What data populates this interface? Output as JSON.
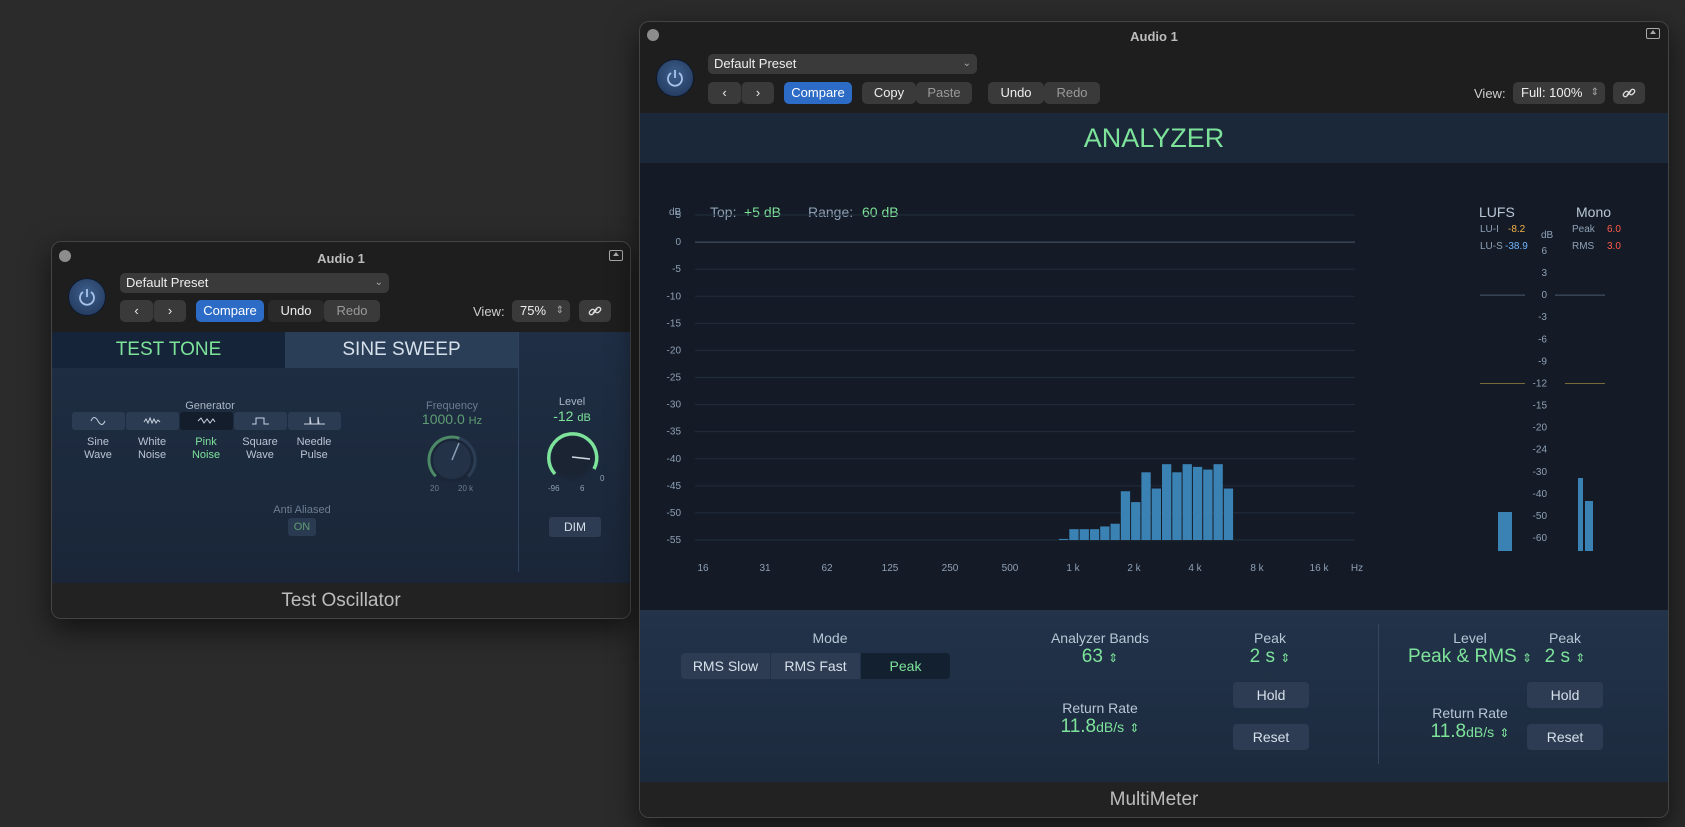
{
  "test_osc": {
    "title": "Audio 1",
    "preset": "Default Preset",
    "compare": "Compare",
    "undo": "Undo",
    "redo": "Redo",
    "view_label": "View:",
    "view_value": "75%",
    "tabs": [
      "TEST TONE",
      "SINE SWEEP"
    ],
    "generator_label": "Generator",
    "generators": [
      {
        "line1": "Sine",
        "line2": "Wave"
      },
      {
        "line1": "White",
        "line2": "Noise"
      },
      {
        "line1": "Pink",
        "line2": "Noise"
      },
      {
        "line1": "Square",
        "line2": "Wave"
      },
      {
        "line1": "Needle",
        "line2": "Pulse"
      }
    ],
    "selected_generator": 2,
    "frequency_label": "Frequency",
    "frequency_value": "1000.0",
    "frequency_unit": "Hz",
    "freq_min": "20",
    "freq_max": "20 k",
    "level_label": "Level",
    "level_value": "-12",
    "level_unit": "dB",
    "level_min": "-96",
    "level_max": "6",
    "level_zero": "0",
    "anti_aliased_label": "Anti Aliased",
    "anti_aliased_value": "ON",
    "dim": "DIM",
    "footer": "Test Oscillator"
  },
  "multimeter": {
    "title": "Audio 1",
    "preset": "Default Preset",
    "compare": "Compare",
    "copy": "Copy",
    "paste": "Paste",
    "undo": "Undo",
    "redo": "Redo",
    "view_label": "View:",
    "view_value": "Full: 100%",
    "header": "ANALYZER",
    "db_unit": "dB",
    "top_label": "Top:",
    "top_value": "+5 dB",
    "range_label": "Range:",
    "range_value": "60 dB",
    "db_ticks": [
      "5",
      "0",
      "-5",
      "-10",
      "-15",
      "-20",
      "-25",
      "-30",
      "-35",
      "-40",
      "-45",
      "-50",
      "-55"
    ],
    "hz_ticks": [
      "16",
      "31",
      "62",
      "125",
      "250",
      "500",
      "1 k",
      "2 k",
      "4 k",
      "8 k",
      "16 k",
      "Hz"
    ],
    "spectrum_bars_db": [
      -54.8,
      -53,
      -53,
      -53,
      -52.5,
      -52,
      -46,
      -48,
      -42.5,
      -45.5,
      -41,
      -42.5,
      -41,
      -41.5,
      -42,
      -41,
      -45.5
    ],
    "lufs_label": "LUFS",
    "lu_i_label": "LU-I",
    "lu_i_value": "-8.2",
    "lu_s_label": "LU-S",
    "lu_s_value": "-38.9",
    "mono_label": "Mono",
    "peak_label": "Peak",
    "peak_value": "6.0",
    "rms_label": "RMS",
    "rms_value": "3.0",
    "meter_ticks": [
      "6",
      "3",
      "0",
      "-3",
      "-6",
      "-9",
      "-12",
      "-15",
      "-20",
      "-24",
      "-30",
      "-40",
      "-50",
      "-60"
    ],
    "mode_label": "Mode",
    "modes": [
      "RMS Slow",
      "RMS Fast",
      "Peak"
    ],
    "selected_mode": 2,
    "bands_label": "Analyzer Bands",
    "bands_value": "63",
    "return_rate_label": "Return Rate",
    "return_rate_value": "11.8",
    "return_rate_unit": "dB/s",
    "peak_hold_label": "Peak",
    "peak_hold_value": "2 s",
    "hold": "Hold",
    "reset": "Reset",
    "level_label": "Level",
    "level_value": "Peak & RMS",
    "level_return_label": "Return Rate",
    "level_return_value": "11.8",
    "level_return_unit": "dB/s",
    "level_peak_label": "Peak",
    "level_peak_value": "2 s",
    "level_hold": "Hold",
    "level_reset": "Reset",
    "footer": "MultiMeter",
    "colors": {
      "accent_green": "#7de39a",
      "bar_blue": "#3b82b4",
      "lu_i": "#f2b14a",
      "lu_s": "#6fb6ff",
      "peak_red": "#ff5a4a"
    }
  }
}
